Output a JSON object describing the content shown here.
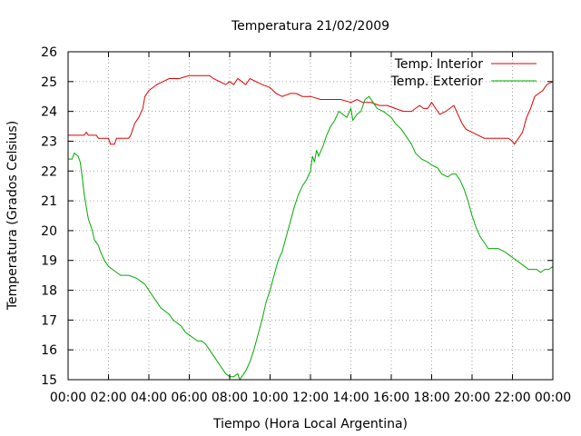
{
  "chart_data": {
    "type": "line",
    "title": "Temperatura 21/02/2009",
    "xlabel": "Tiempo (Hora Local Argentina)",
    "ylabel": "Temperatura (Grados Celsius)",
    "xlim": [
      0,
      24
    ],
    "ylim": [
      15,
      26
    ],
    "x_ticks": [
      0,
      2,
      4,
      6,
      8,
      10,
      12,
      14,
      16,
      18,
      20,
      22,
      24
    ],
    "x_tick_labels": [
      "00:00",
      "02:00",
      "04:00",
      "06:00",
      "08:00",
      "10:00",
      "12:00",
      "14:00",
      "16:00",
      "18:00",
      "20:00",
      "22:00",
      "00:00"
    ],
    "y_ticks": [
      15,
      16,
      17,
      18,
      19,
      20,
      21,
      22,
      23,
      24,
      25,
      26
    ],
    "y_tick_labels": [
      "15",
      "16",
      "17",
      "18",
      "19",
      "20",
      "21",
      "22",
      "23",
      "24",
      "25",
      "26"
    ],
    "grid": true,
    "legend_position": "top-right",
    "series": [
      {
        "name": "Temp. Interior",
        "color": "#dd0000",
        "points": [
          [
            0,
            23.2
          ],
          [
            0.4,
            23.2
          ],
          [
            0.8,
            23.2
          ],
          [
            0.9,
            23.3
          ],
          [
            1.0,
            23.2
          ],
          [
            1.4,
            23.2
          ],
          [
            1.5,
            23.1
          ],
          [
            2.0,
            23.1
          ],
          [
            2.1,
            22.9
          ],
          [
            2.3,
            22.9
          ],
          [
            2.4,
            23.1
          ],
          [
            2.6,
            23.1
          ],
          [
            3.0,
            23.1
          ],
          [
            3.1,
            23.2
          ],
          [
            3.3,
            23.6
          ],
          [
            3.5,
            23.8
          ],
          [
            3.7,
            24.1
          ],
          [
            3.8,
            24.5
          ],
          [
            4.0,
            24.7
          ],
          [
            4.2,
            24.8
          ],
          [
            4.4,
            24.9
          ],
          [
            4.7,
            25.0
          ],
          [
            5.0,
            25.1
          ],
          [
            5.5,
            25.1
          ],
          [
            6.0,
            25.2
          ],
          [
            6.5,
            25.2
          ],
          [
            7.0,
            25.2
          ],
          [
            7.2,
            25.1
          ],
          [
            7.5,
            25.0
          ],
          [
            7.8,
            24.9
          ],
          [
            8.0,
            25.0
          ],
          [
            8.2,
            24.9
          ],
          [
            8.4,
            25.1
          ],
          [
            8.6,
            25.0
          ],
          [
            8.8,
            24.9
          ],
          [
            9.0,
            25.1
          ],
          [
            9.3,
            25.0
          ],
          [
            9.6,
            24.9
          ],
          [
            10.0,
            24.8
          ],
          [
            10.3,
            24.6
          ],
          [
            10.6,
            24.5
          ],
          [
            11.0,
            24.6
          ],
          [
            11.3,
            24.6
          ],
          [
            11.6,
            24.5
          ],
          [
            12.0,
            24.5
          ],
          [
            12.5,
            24.4
          ],
          [
            13.0,
            24.4
          ],
          [
            13.5,
            24.4
          ],
          [
            14.0,
            24.3
          ],
          [
            14.3,
            24.4
          ],
          [
            14.6,
            24.3
          ],
          [
            15.0,
            24.3
          ],
          [
            15.4,
            24.2
          ],
          [
            15.8,
            24.2
          ],
          [
            16.2,
            24.1
          ],
          [
            16.6,
            24.0
          ],
          [
            17.0,
            24.0
          ],
          [
            17.2,
            24.1
          ],
          [
            17.4,
            24.2
          ],
          [
            17.6,
            24.1
          ],
          [
            17.8,
            24.1
          ],
          [
            18.0,
            24.3
          ],
          [
            18.2,
            24.1
          ],
          [
            18.4,
            23.9
          ],
          [
            18.7,
            24.0
          ],
          [
            18.9,
            24.1
          ],
          [
            19.1,
            24.2
          ],
          [
            19.3,
            23.9
          ],
          [
            19.5,
            23.6
          ],
          [
            19.7,
            23.4
          ],
          [
            20.0,
            23.3
          ],
          [
            20.3,
            23.2
          ],
          [
            20.6,
            23.1
          ],
          [
            21.0,
            23.1
          ],
          [
            21.4,
            23.1
          ],
          [
            21.8,
            23.1
          ],
          [
            22.0,
            23.0
          ],
          [
            22.1,
            22.9
          ],
          [
            22.3,
            23.1
          ],
          [
            22.5,
            23.3
          ],
          [
            22.7,
            23.8
          ],
          [
            22.9,
            24.1
          ],
          [
            23.1,
            24.5
          ],
          [
            23.3,
            24.6
          ],
          [
            23.5,
            24.7
          ],
          [
            23.7,
            24.9
          ],
          [
            24.0,
            25.0
          ]
        ]
      },
      {
        "name": "Temp. Exterior",
        "color": "#00aa00",
        "points": [
          [
            0,
            22.4
          ],
          [
            0.2,
            22.4
          ],
          [
            0.3,
            22.6
          ],
          [
            0.5,
            22.5
          ],
          [
            0.6,
            22.3
          ],
          [
            0.7,
            21.8
          ],
          [
            0.8,
            21.2
          ],
          [
            0.9,
            20.8
          ],
          [
            1.0,
            20.4
          ],
          [
            1.2,
            20.0
          ],
          [
            1.3,
            19.7
          ],
          [
            1.5,
            19.5
          ],
          [
            1.6,
            19.3
          ],
          [
            1.8,
            19.0
          ],
          [
            2.0,
            18.8
          ],
          [
            2.2,
            18.7
          ],
          [
            2.4,
            18.6
          ],
          [
            2.6,
            18.5
          ],
          [
            3.0,
            18.5
          ],
          [
            3.4,
            18.4
          ],
          [
            3.6,
            18.3
          ],
          [
            3.8,
            18.2
          ],
          [
            4.0,
            18.0
          ],
          [
            4.2,
            17.8
          ],
          [
            4.4,
            17.6
          ],
          [
            4.6,
            17.4
          ],
          [
            4.8,
            17.3
          ],
          [
            5.0,
            17.2
          ],
          [
            5.2,
            17.0
          ],
          [
            5.4,
            16.9
          ],
          [
            5.6,
            16.8
          ],
          [
            5.8,
            16.6
          ],
          [
            6.0,
            16.5
          ],
          [
            6.2,
            16.4
          ],
          [
            6.4,
            16.3
          ],
          [
            6.6,
            16.3
          ],
          [
            6.8,
            16.2
          ],
          [
            7.0,
            16.0
          ],
          [
            7.2,
            15.8
          ],
          [
            7.4,
            15.6
          ],
          [
            7.6,
            15.4
          ],
          [
            7.8,
            15.2
          ],
          [
            8.0,
            15.1
          ],
          [
            8.2,
            15.1
          ],
          [
            8.4,
            15.2
          ],
          [
            8.5,
            15.0
          ],
          [
            8.6,
            15.1
          ],
          [
            8.8,
            15.3
          ],
          [
            9.0,
            15.6
          ],
          [
            9.2,
            16.0
          ],
          [
            9.4,
            16.5
          ],
          [
            9.6,
            17.0
          ],
          [
            9.8,
            17.6
          ],
          [
            10.0,
            18.0
          ],
          [
            10.2,
            18.5
          ],
          [
            10.4,
            19.0
          ],
          [
            10.6,
            19.3
          ],
          [
            10.8,
            19.8
          ],
          [
            11.0,
            20.3
          ],
          [
            11.2,
            20.8
          ],
          [
            11.4,
            21.2
          ],
          [
            11.6,
            21.5
          ],
          [
            11.8,
            21.7
          ],
          [
            12.0,
            22.0
          ],
          [
            12.1,
            22.5
          ],
          [
            12.2,
            22.3
          ],
          [
            12.3,
            22.7
          ],
          [
            12.4,
            22.5
          ],
          [
            12.6,
            22.8
          ],
          [
            12.8,
            23.2
          ],
          [
            13.0,
            23.5
          ],
          [
            13.2,
            23.7
          ],
          [
            13.4,
            24.0
          ],
          [
            13.6,
            23.9
          ],
          [
            13.8,
            23.8
          ],
          [
            14.0,
            24.1
          ],
          [
            14.1,
            23.7
          ],
          [
            14.3,
            23.9
          ],
          [
            14.5,
            24.0
          ],
          [
            14.7,
            24.4
          ],
          [
            14.9,
            24.5
          ],
          [
            15.1,
            24.3
          ],
          [
            15.3,
            24.1
          ],
          [
            15.6,
            24.0
          ],
          [
            15.8,
            23.9
          ],
          [
            16.0,
            23.8
          ],
          [
            16.2,
            23.6
          ],
          [
            16.5,
            23.4
          ],
          [
            16.8,
            23.1
          ],
          [
            17.0,
            22.9
          ],
          [
            17.2,
            22.6
          ],
          [
            17.5,
            22.4
          ],
          [
            17.8,
            22.3
          ],
          [
            18.0,
            22.2
          ],
          [
            18.3,
            22.1
          ],
          [
            18.5,
            21.9
          ],
          [
            18.8,
            21.8
          ],
          [
            19.0,
            21.9
          ],
          [
            19.2,
            21.9
          ],
          [
            19.4,
            21.7
          ],
          [
            19.6,
            21.4
          ],
          [
            19.8,
            21.0
          ],
          [
            20.0,
            20.5
          ],
          [
            20.2,
            20.1
          ],
          [
            20.4,
            19.8
          ],
          [
            20.6,
            19.6
          ],
          [
            20.8,
            19.4
          ],
          [
            21.0,
            19.4
          ],
          [
            21.3,
            19.4
          ],
          [
            21.6,
            19.3
          ],
          [
            21.8,
            19.2
          ],
          [
            22.0,
            19.1
          ],
          [
            22.2,
            19.0
          ],
          [
            22.4,
            18.9
          ],
          [
            22.6,
            18.8
          ],
          [
            22.8,
            18.7
          ],
          [
            23.0,
            18.7
          ],
          [
            23.2,
            18.7
          ],
          [
            23.4,
            18.6
          ],
          [
            23.6,
            18.7
          ],
          [
            23.8,
            18.7
          ],
          [
            24.0,
            18.8
          ]
        ]
      }
    ]
  }
}
